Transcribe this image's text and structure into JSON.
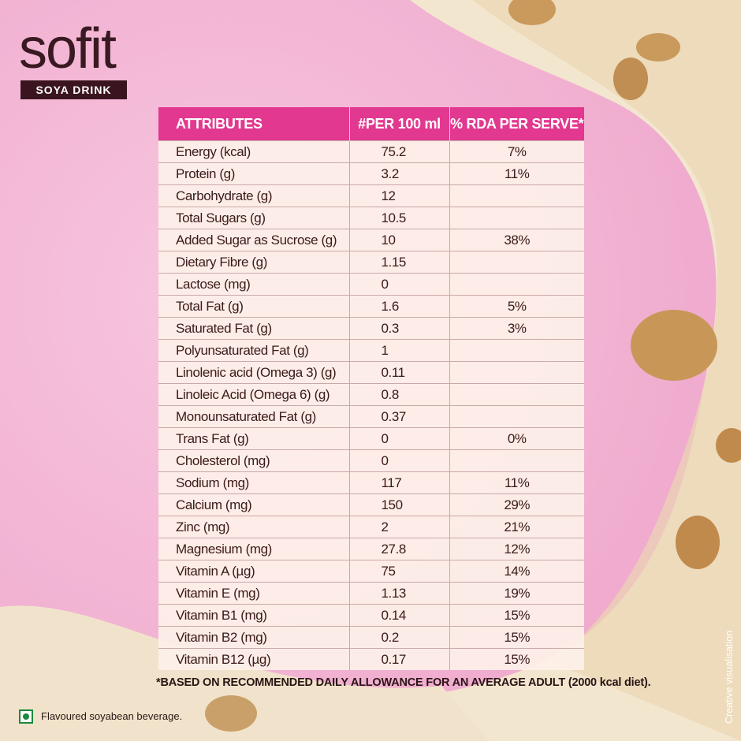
{
  "header": {
    "brand": "sofit",
    "tagline": "SOYA DRINK"
  },
  "table": {
    "columns": [
      "ATTRIBUTES",
      "#PER 100 ml",
      "% RDA  PER SERVE*"
    ],
    "rows": [
      [
        "Energy (kcal)",
        "75.2",
        "7%"
      ],
      [
        "Protein (g)",
        "3.2",
        "11%"
      ],
      [
        "Carbohydrate (g)",
        "12"
      ],
      [
        "Total Sugars (g)",
        "10.5"
      ],
      [
        "Added Sugar as Sucrose (g)",
        "10",
        "38%"
      ],
      [
        "Dietary Fibre (g)",
        "1.15"
      ],
      [
        "Lactose (mg)",
        "0"
      ],
      [
        "Total Fat (g)",
        "1.6",
        "5%"
      ],
      [
        "Saturated Fat (g)",
        "0.3",
        "3%"
      ],
      [
        "Polyunsaturated Fat  (g)",
        "1"
      ],
      [
        "Linolenic acid (Omega 3)  (g)",
        "0.11"
      ],
      [
        "Linoleic Acid (Omega 6)  (g)",
        "0.8"
      ],
      [
        "Monounsaturated Fat  (g)",
        "0.37"
      ],
      [
        "Trans Fat (g)",
        "0",
        "0%"
      ],
      [
        "Cholesterol (mg)",
        "0"
      ],
      [
        "Sodium (mg)",
        "117",
        "11%"
      ],
      [
        "Calcium (mg)",
        "150",
        "29%"
      ],
      [
        "Zinc (mg)",
        "2",
        "21%"
      ],
      [
        "Magnesium (mg)",
        "27.8",
        "12%"
      ],
      [
        "Vitamin A (µg)",
        "75",
        "14%"
      ],
      [
        "Vitamin E (mg)",
        "1.13",
        "19%"
      ],
      [
        "Vitamin B1 (mg)",
        "0.14",
        "15%"
      ],
      [
        "Vitamin B2 (mg)",
        "0.2",
        "15%"
      ],
      [
        "Vitamin B12 (µg)",
        "0.17",
        "15%"
      ]
    ]
  },
  "footnote": "*BASED ON RECOMMENDED DAILY ALLOWANCE FOR AN AVERAGE ADULT (2000 kcal diet).",
  "description": "Flavoured soyabean beverage.",
  "disclaimer": "Creative visualisation"
}
